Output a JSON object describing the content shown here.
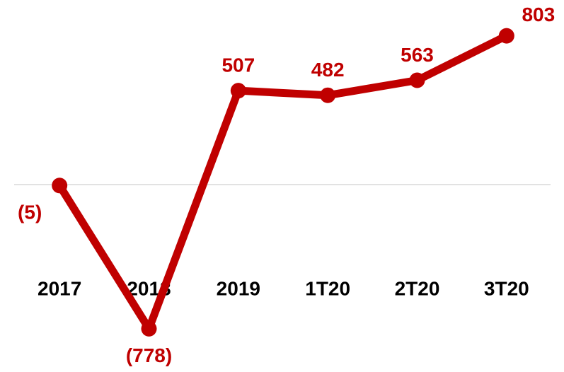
{
  "chart_data": {
    "type": "line",
    "categories": [
      "2017",
      "2018",
      "2019",
      "1T20",
      "2T20",
      "3T20"
    ],
    "values": [
      -5,
      -778,
      507,
      482,
      563,
      803
    ],
    "value_labels": [
      "(5)",
      "(778)",
      "507",
      "482",
      "563",
      "803"
    ],
    "color": "#c00000",
    "ylim": [
      -1000,
      1000
    ],
    "zero_line": true
  }
}
